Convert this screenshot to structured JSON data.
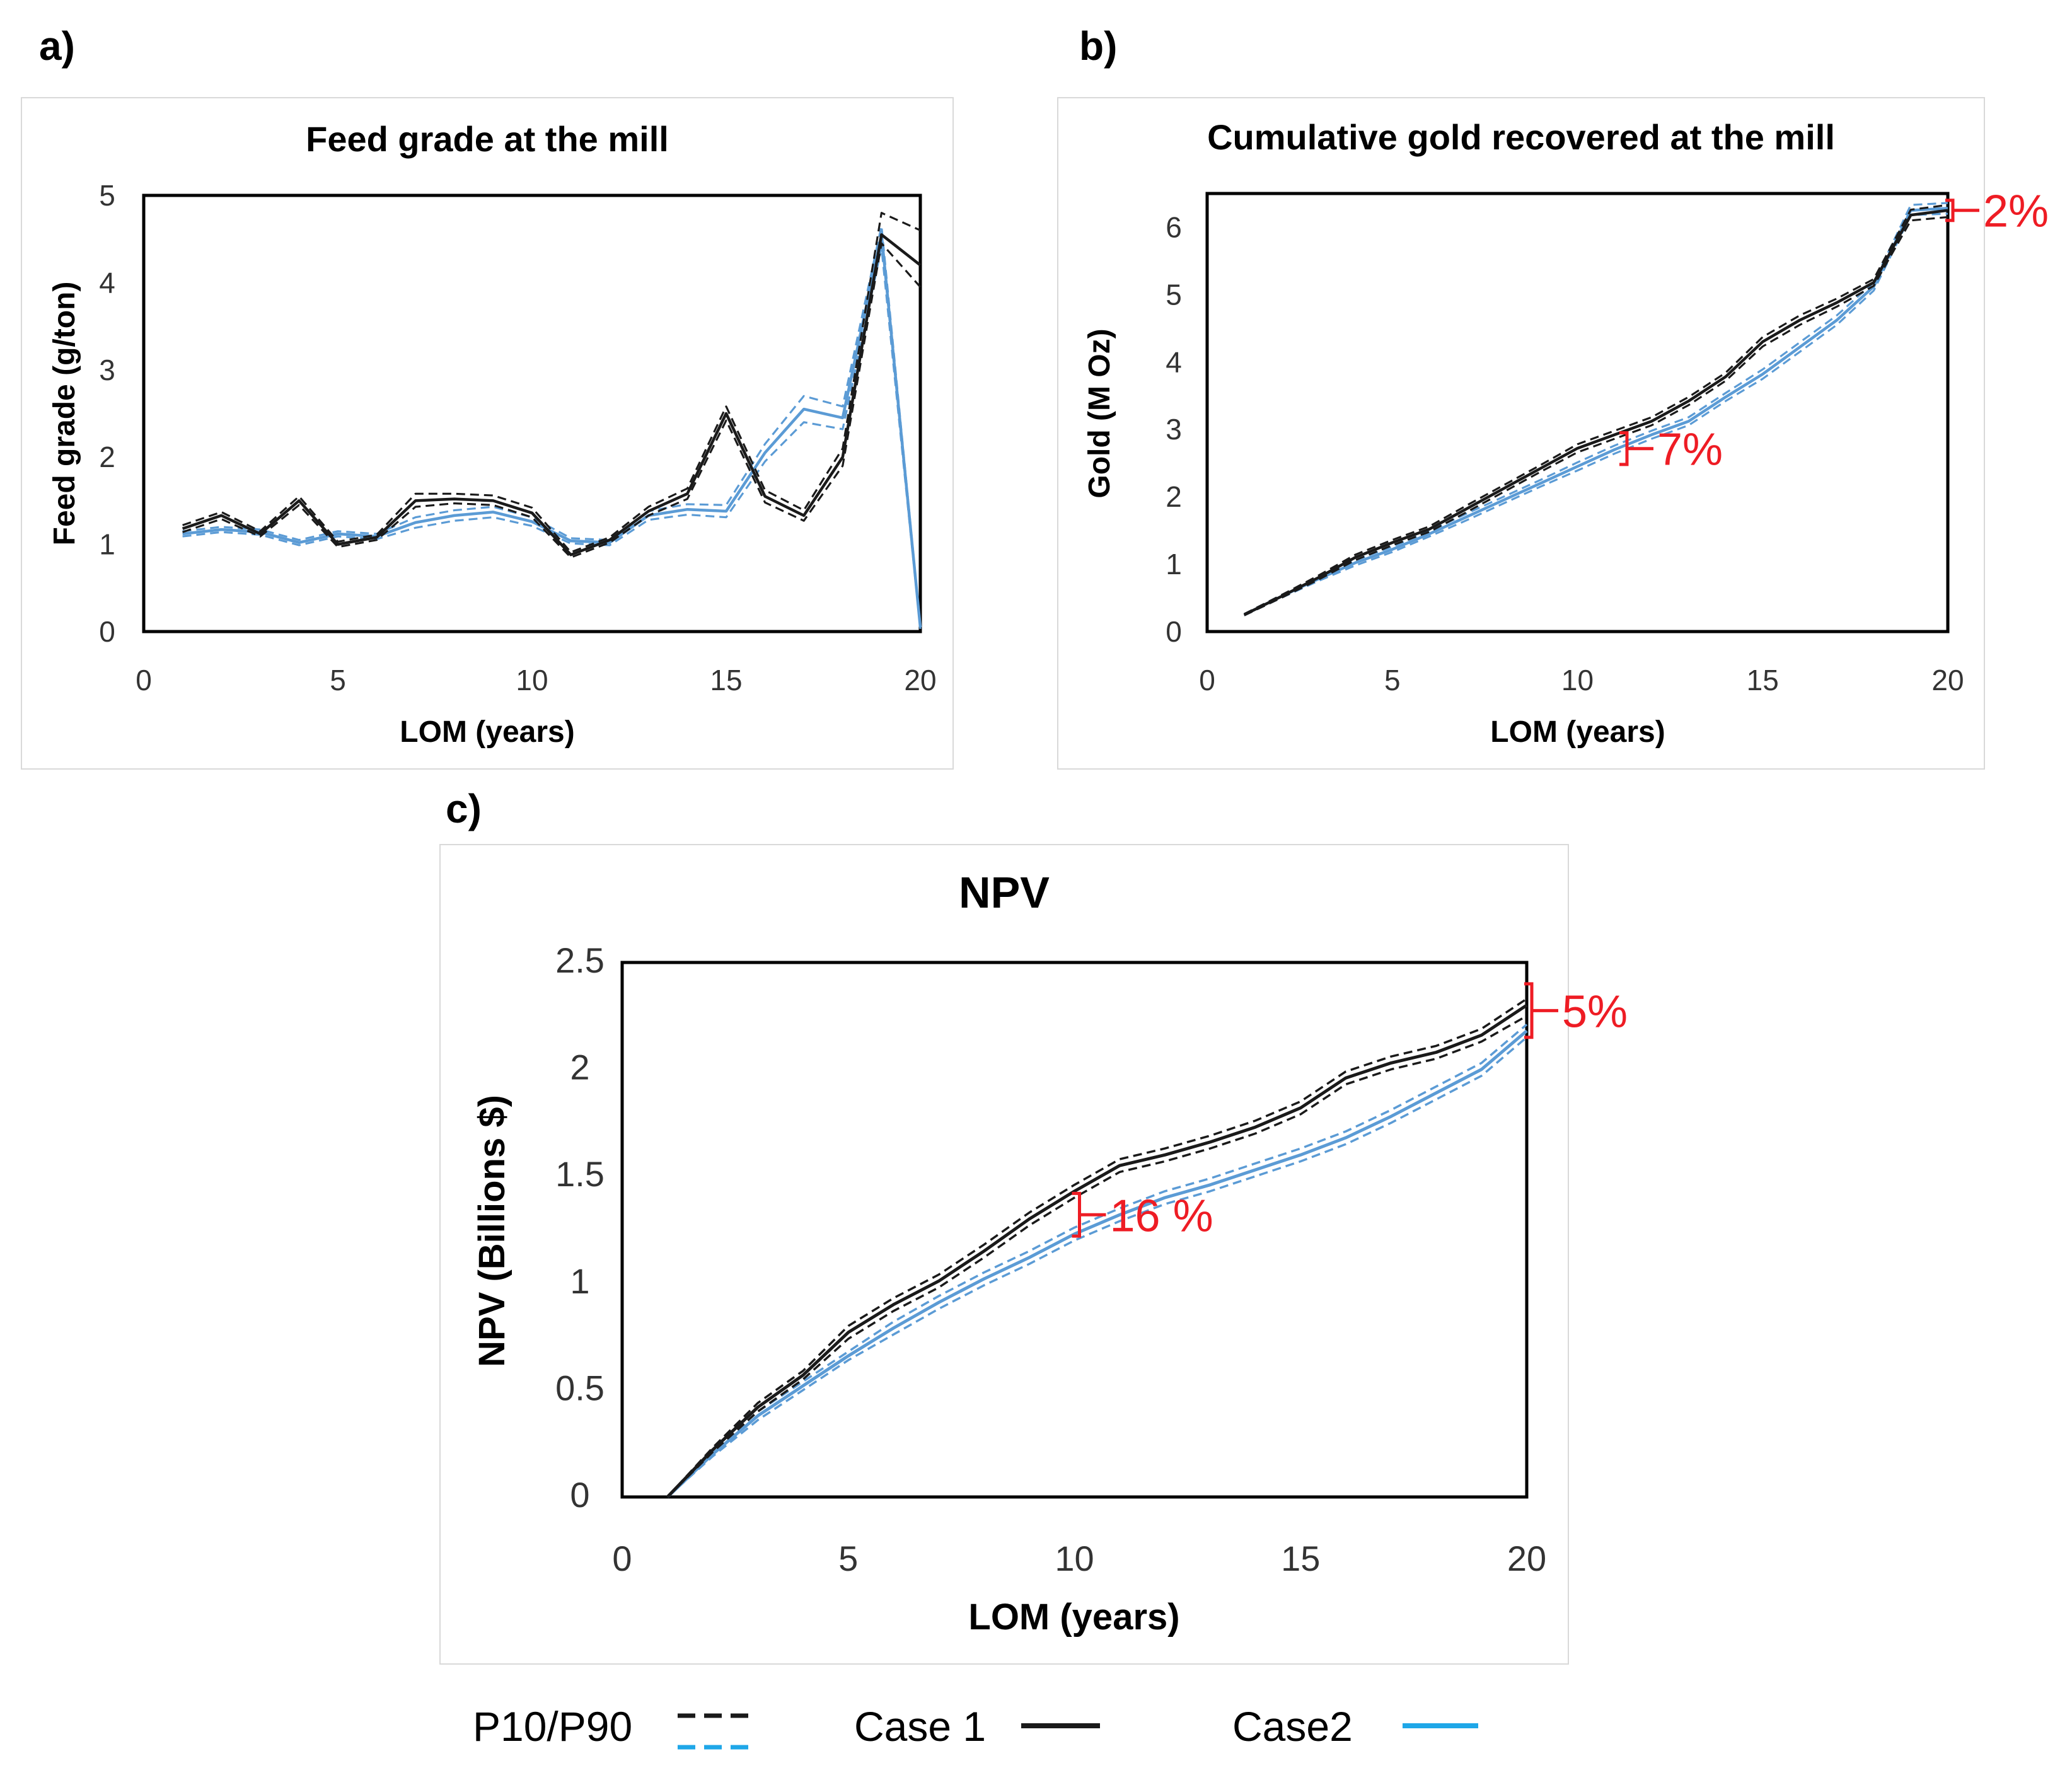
{
  "legend": {
    "p10p90_label": "P10/P90",
    "case1_label": "Case 1",
    "case2_label": "Case2"
  },
  "colors": {
    "case1": "#1a1a1a",
    "case2": "#5b9bd5",
    "annotation": "#ee1c24",
    "legend_case2": "#1fa7e8"
  },
  "chart_data": [
    {
      "panel": "a)",
      "type": "line",
      "title": "Feed grade at the mill",
      "xlabel": "LOM (years)",
      "ylabel": "Feed grade (g/ton)",
      "xlim": [
        0,
        20
      ],
      "ylim": [
        0,
        5
      ],
      "xticks": [
        0,
        5,
        10,
        15,
        20
      ],
      "yticks": [
        0,
        1,
        2,
        3,
        4,
        5
      ],
      "x": [
        1,
        2,
        3,
        4,
        5,
        6,
        7,
        8,
        9,
        10,
        11,
        12,
        13,
        14,
        15,
        16,
        17,
        18,
        19,
        20
      ],
      "series": [
        {
          "name": "Case 1",
          "style": "solid",
          "color": "#1a1a1a",
          "values": [
            1.18,
            1.33,
            1.12,
            1.5,
            1.0,
            1.08,
            1.5,
            1.52,
            1.5,
            1.36,
            0.88,
            1.05,
            1.38,
            1.58,
            2.5,
            1.55,
            1.33,
            2.0,
            4.55,
            4.2
          ]
        },
        {
          "name": "Case 1 P10",
          "style": "dashed",
          "color": "#1a1a1a",
          "values": [
            1.14,
            1.29,
            1.09,
            1.45,
            0.97,
            1.05,
            1.43,
            1.47,
            1.45,
            1.31,
            0.85,
            1.02,
            1.33,
            1.52,
            2.42,
            1.48,
            1.27,
            1.9,
            4.45,
            3.95
          ]
        },
        {
          "name": "Case 1 P90",
          "style": "dashed",
          "color": "#1a1a1a",
          "values": [
            1.22,
            1.37,
            1.15,
            1.55,
            1.03,
            1.11,
            1.58,
            1.58,
            1.56,
            1.42,
            0.91,
            1.08,
            1.43,
            1.64,
            2.58,
            1.62,
            1.39,
            2.1,
            4.8,
            4.6
          ]
        },
        {
          "name": "Case 2",
          "style": "solid",
          "color": "#5b9bd5",
          "values": [
            1.12,
            1.17,
            1.14,
            1.02,
            1.12,
            1.09,
            1.25,
            1.33,
            1.37,
            1.26,
            1.04,
            1.02,
            1.33,
            1.4,
            1.38,
            2.05,
            2.55,
            2.45,
            4.55,
            0.05
          ]
        },
        {
          "name": "Case 2 P10",
          "style": "dashed",
          "color": "#5b9bd5",
          "values": [
            1.09,
            1.14,
            1.11,
            0.99,
            1.09,
            1.06,
            1.19,
            1.27,
            1.31,
            1.21,
            1.01,
            0.99,
            1.28,
            1.34,
            1.31,
            1.95,
            2.4,
            2.32,
            4.4,
            0.03
          ]
        },
        {
          "name": "Case 2 P90",
          "style": "dashed",
          "color": "#5b9bd5",
          "values": [
            1.15,
            1.2,
            1.17,
            1.05,
            1.15,
            1.12,
            1.31,
            1.39,
            1.43,
            1.31,
            1.07,
            1.05,
            1.38,
            1.46,
            1.45,
            2.15,
            2.7,
            2.58,
            4.65,
            0.07
          ]
        }
      ],
      "annotations": []
    },
    {
      "panel": "b)",
      "type": "line",
      "title": "Cumulative gold recovered at the mill",
      "xlabel": "LOM (years)",
      "ylabel": "Gold (M Oz)",
      "xlim": [
        0,
        20
      ],
      "ylim": [
        0,
        6.5
      ],
      "xticks": [
        0,
        5,
        10,
        15,
        20
      ],
      "yticks": [
        0,
        1,
        2,
        3,
        4,
        5,
        6
      ],
      "x": [
        1,
        2,
        3,
        4,
        5,
        6,
        7,
        8,
        9,
        10,
        11,
        12,
        13,
        14,
        15,
        16,
        17,
        18,
        19,
        20
      ],
      "series": [
        {
          "name": "Case 1",
          "style": "solid",
          "color": "#1a1a1a",
          "values": [
            0.25,
            0.52,
            0.8,
            1.1,
            1.32,
            1.52,
            1.82,
            2.12,
            2.42,
            2.72,
            2.92,
            3.12,
            3.42,
            3.78,
            4.3,
            4.62,
            4.88,
            5.18,
            6.18,
            6.25
          ]
        },
        {
          "name": "Case 1 P10",
          "style": "dashed",
          "color": "#1a1a1a",
          "values": [
            0.24,
            0.5,
            0.77,
            1.06,
            1.28,
            1.48,
            1.77,
            2.07,
            2.37,
            2.66,
            2.86,
            3.06,
            3.36,
            3.72,
            4.23,
            4.55,
            4.82,
            5.13,
            6.1,
            6.15
          ]
        },
        {
          "name": "Case 1 P90",
          "style": "dashed",
          "color": "#1a1a1a",
          "values": [
            0.26,
            0.54,
            0.83,
            1.14,
            1.36,
            1.56,
            1.87,
            2.17,
            2.47,
            2.78,
            2.98,
            3.18,
            3.48,
            3.84,
            4.37,
            4.69,
            4.94,
            5.23,
            6.26,
            6.33
          ]
        },
        {
          "name": "Case 2",
          "style": "solid",
          "color": "#5b9bd5",
          "values": [
            0.25,
            0.52,
            0.78,
            1.02,
            1.22,
            1.45,
            1.7,
            1.95,
            2.2,
            2.45,
            2.7,
            2.92,
            3.12,
            3.48,
            3.82,
            4.22,
            4.62,
            5.12,
            6.25,
            6.28
          ]
        },
        {
          "name": "Case 2 P10",
          "style": "dashed",
          "color": "#5b9bd5",
          "values": [
            0.24,
            0.5,
            0.75,
            0.98,
            1.18,
            1.41,
            1.65,
            1.9,
            2.15,
            2.39,
            2.64,
            2.86,
            3.06,
            3.42,
            3.75,
            4.15,
            4.55,
            5.06,
            6.18,
            6.2
          ]
        },
        {
          "name": "Case 2 P90",
          "style": "dashed",
          "color": "#5b9bd5",
          "values": [
            0.26,
            0.54,
            0.81,
            1.06,
            1.26,
            1.49,
            1.75,
            2.0,
            2.25,
            2.51,
            2.76,
            2.98,
            3.18,
            3.54,
            3.89,
            4.29,
            4.69,
            5.18,
            6.33,
            6.36
          ]
        }
      ],
      "annotations": [
        {
          "text": "7%",
          "x": 11.2,
          "y_low": 2.48,
          "y_high": 2.95
        },
        {
          "text": "2%",
          "x": 20.0,
          "y_low": 6.1,
          "y_high": 6.4
        }
      ]
    },
    {
      "panel": "c)",
      "type": "line",
      "title": "NPV",
      "xlabel": "LOM (years)",
      "ylabel": "NPV (Billions $)",
      "xlim": [
        0,
        20
      ],
      "ylim": [
        0,
        2.5
      ],
      "xticks": [
        0,
        5,
        10,
        15,
        20
      ],
      "yticks": [
        "0",
        "0.5",
        "1",
        "1.5",
        "2",
        "2.5"
      ],
      "x": [
        1,
        2,
        3,
        4,
        5,
        6,
        7,
        8,
        9,
        10,
        11,
        12,
        13,
        14,
        15,
        16,
        17,
        18,
        19,
        20
      ],
      "series": [
        {
          "name": "Case 1",
          "style": "solid",
          "color": "#1a1a1a",
          "values": [
            0.0,
            0.22,
            0.42,
            0.57,
            0.77,
            0.9,
            1.01,
            1.15,
            1.3,
            1.43,
            1.55,
            1.6,
            1.66,
            1.73,
            1.82,
            1.96,
            2.03,
            2.08,
            2.16,
            2.3
          ]
        },
        {
          "name": "Case 1 P10",
          "style": "dashed",
          "color": "#1a1a1a",
          "values": [
            0.0,
            0.21,
            0.4,
            0.55,
            0.74,
            0.87,
            0.98,
            1.12,
            1.27,
            1.4,
            1.52,
            1.57,
            1.63,
            1.7,
            1.79,
            1.93,
            2.0,
            2.05,
            2.13,
            2.25
          ]
        },
        {
          "name": "Case 1 P90",
          "style": "dashed",
          "color": "#1a1a1a",
          "values": [
            0.0,
            0.23,
            0.44,
            0.59,
            0.8,
            0.93,
            1.04,
            1.18,
            1.33,
            1.46,
            1.58,
            1.63,
            1.69,
            1.76,
            1.85,
            1.99,
            2.06,
            2.11,
            2.19,
            2.33
          ]
        },
        {
          "name": "Case 2",
          "style": "solid",
          "color": "#5b9bd5",
          "values": [
            0.0,
            0.2,
            0.38,
            0.52,
            0.66,
            0.79,
            0.91,
            1.02,
            1.12,
            1.23,
            1.32,
            1.4,
            1.46,
            1.53,
            1.6,
            1.68,
            1.78,
            1.89,
            2.0,
            2.18
          ]
        },
        {
          "name": "Case 2 P10",
          "style": "dashed",
          "color": "#5b9bd5",
          "values": [
            0.0,
            0.19,
            0.36,
            0.5,
            0.64,
            0.76,
            0.88,
            0.99,
            1.09,
            1.2,
            1.29,
            1.37,
            1.43,
            1.5,
            1.57,
            1.65,
            1.75,
            1.86,
            1.97,
            2.15
          ]
        },
        {
          "name": "Case 2 P90",
          "style": "dashed",
          "color": "#5b9bd5",
          "values": [
            0.0,
            0.21,
            0.4,
            0.54,
            0.68,
            0.82,
            0.94,
            1.05,
            1.15,
            1.26,
            1.35,
            1.43,
            1.49,
            1.56,
            1.63,
            1.71,
            1.81,
            1.92,
            2.03,
            2.21
          ]
        }
      ],
      "annotations": [
        {
          "text": "16 %",
          "x": 10.0,
          "y_low": 1.22,
          "y_high": 1.42
        },
        {
          "text": "5%",
          "x": 20.0,
          "y_low": 2.15,
          "y_high": 2.4
        }
      ]
    }
  ]
}
